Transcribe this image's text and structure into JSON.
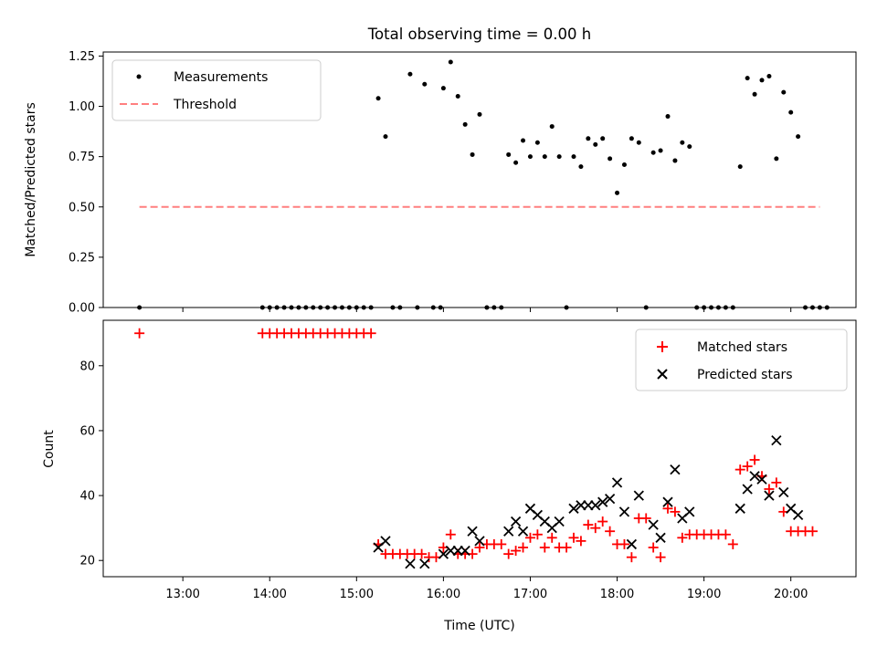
{
  "figure": {
    "title": "Total observing time = 0.00 h",
    "xlabel": "Time (UTC)"
  },
  "chart_data": [
    {
      "type": "scatter",
      "ylabel": "Matched/Predicted stars",
      "xlim": [
        "12:05",
        "20:45"
      ],
      "ylim": [
        0,
        1.27
      ],
      "yticks": [
        "0.00",
        "0.25",
        "0.50",
        "0.75",
        "1.00",
        "1.25"
      ],
      "xticks": [
        "13:00",
        "14:00",
        "15:00",
        "16:00",
        "17:00",
        "18:00",
        "19:00",
        "20:00"
      ],
      "legend": {
        "position": "top-left"
      },
      "series": [
        {
          "name": "Measurements",
          "color": "#000000",
          "marker": "dot",
          "points": [
            [
              "12:30",
              0.0
            ],
            [
              "13:55",
              0.0
            ],
            [
              "14:00",
              0.0
            ],
            [
              "14:05",
              0.0
            ],
            [
              "14:10",
              0.0
            ],
            [
              "14:15",
              0.0
            ],
            [
              "14:20",
              0.0
            ],
            [
              "14:25",
              0.0
            ],
            [
              "14:30",
              0.0
            ],
            [
              "14:35",
              0.0
            ],
            [
              "14:40",
              0.0
            ],
            [
              "14:45",
              0.0
            ],
            [
              "14:50",
              0.0
            ],
            [
              "14:55",
              0.0
            ],
            [
              "15:00",
              0.0
            ],
            [
              "15:05",
              0.0
            ],
            [
              "15:10",
              0.0
            ],
            [
              "15:15",
              1.04
            ],
            [
              "15:20",
              0.85
            ],
            [
              "15:25",
              0.0
            ],
            [
              "15:30",
              0.0
            ],
            [
              "15:37",
              1.16
            ],
            [
              "15:42",
              0.0
            ],
            [
              "15:47",
              1.11
            ],
            [
              "15:53",
              0.0
            ],
            [
              "15:58",
              0.0
            ],
            [
              "16:00",
              1.09
            ],
            [
              "16:05",
              1.22
            ],
            [
              "16:10",
              1.05
            ],
            [
              "16:15",
              0.91
            ],
            [
              "16:20",
              0.76
            ],
            [
              "16:25",
              0.96
            ],
            [
              "16:30",
              0.0
            ],
            [
              "16:35",
              0.0
            ],
            [
              "16:40",
              0.0
            ],
            [
              "16:45",
              0.76
            ],
            [
              "16:50",
              0.72
            ],
            [
              "16:55",
              0.83
            ],
            [
              "17:00",
              0.75
            ],
            [
              "17:05",
              0.82
            ],
            [
              "17:10",
              0.75
            ],
            [
              "17:15",
              0.9
            ],
            [
              "17:20",
              0.75
            ],
            [
              "17:25",
              0.0
            ],
            [
              "17:30",
              0.75
            ],
            [
              "17:35",
              0.7
            ],
            [
              "17:40",
              0.84
            ],
            [
              "17:45",
              0.81
            ],
            [
              "17:50",
              0.84
            ],
            [
              "17:55",
              0.74
            ],
            [
              "18:00",
              0.57
            ],
            [
              "18:05",
              0.71
            ],
            [
              "18:10",
              0.84
            ],
            [
              "18:15",
              0.82
            ],
            [
              "18:20",
              0.0
            ],
            [
              "18:25",
              0.77
            ],
            [
              "18:30",
              0.78
            ],
            [
              "18:35",
              0.95
            ],
            [
              "18:40",
              0.73
            ],
            [
              "18:45",
              0.82
            ],
            [
              "18:50",
              0.8
            ],
            [
              "18:55",
              0.0
            ],
            [
              "19:00",
              0.0
            ],
            [
              "19:05",
              0.0
            ],
            [
              "19:10",
              0.0
            ],
            [
              "19:15",
              0.0
            ],
            [
              "19:20",
              0.0
            ],
            [
              "19:25",
              0.7
            ],
            [
              "19:30",
              1.14
            ],
            [
              "19:35",
              1.06
            ],
            [
              "19:40",
              1.13
            ],
            [
              "19:45",
              1.15
            ],
            [
              "19:50",
              0.74
            ],
            [
              "19:55",
              1.07
            ],
            [
              "20:00",
              0.97
            ],
            [
              "20:05",
              0.85
            ],
            [
              "20:10",
              0.0
            ],
            [
              "20:15",
              0.0
            ],
            [
              "20:20",
              0.0
            ],
            [
              "20:25",
              0.0
            ]
          ]
        },
        {
          "name": "Threshold",
          "color": "#ff7f7f",
          "style": "dashed",
          "points": [
            [
              "12:30",
              0.5
            ],
            [
              "20:20",
              0.5
            ]
          ]
        }
      ]
    },
    {
      "type": "scatter",
      "ylabel": "Count",
      "xlim": [
        "12:05",
        "20:45"
      ],
      "ylim": [
        15,
        94
      ],
      "yticks": [
        "20",
        "40",
        "60",
        "80"
      ],
      "xticks": [
        "13:00",
        "14:00",
        "15:00",
        "16:00",
        "17:00",
        "18:00",
        "19:00",
        "20:00"
      ],
      "legend": {
        "position": "top-right"
      },
      "series": [
        {
          "name": "Matched stars",
          "color": "#ff0000",
          "marker": "plus",
          "points": [
            [
              "12:30",
              90
            ],
            [
              "13:55",
              90
            ],
            [
              "14:00",
              90
            ],
            [
              "14:05",
              90
            ],
            [
              "14:10",
              90
            ],
            [
              "14:15",
              90
            ],
            [
              "14:20",
              90
            ],
            [
              "14:25",
              90
            ],
            [
              "14:30",
              90
            ],
            [
              "14:35",
              90
            ],
            [
              "14:40",
              90
            ],
            [
              "14:45",
              90
            ],
            [
              "14:50",
              90
            ],
            [
              "14:55",
              90
            ],
            [
              "15:00",
              90
            ],
            [
              "15:05",
              90
            ],
            [
              "15:10",
              90
            ],
            [
              "15:15",
              25
            ],
            [
              "15:20",
              22
            ],
            [
              "15:25",
              22
            ],
            [
              "15:30",
              22
            ],
            [
              "15:35",
              22
            ],
            [
              "15:40",
              22
            ],
            [
              "15:45",
              22
            ],
            [
              "15:50",
              21
            ],
            [
              "15:55",
              21
            ],
            [
              "16:00",
              24
            ],
            [
              "16:05",
              28
            ],
            [
              "16:10",
              22
            ],
            [
              "16:15",
              22
            ],
            [
              "16:20",
              22
            ],
            [
              "16:25",
              24
            ],
            [
              "16:30",
              25
            ],
            [
              "16:35",
              25
            ],
            [
              "16:40",
              25
            ],
            [
              "16:45",
              22
            ],
            [
              "16:50",
              23
            ],
            [
              "16:55",
              24
            ],
            [
              "17:00",
              27
            ],
            [
              "17:05",
              28
            ],
            [
              "17:10",
              24
            ],
            [
              "17:15",
              27
            ],
            [
              "17:20",
              24
            ],
            [
              "17:25",
              24
            ],
            [
              "17:30",
              27
            ],
            [
              "17:35",
              26
            ],
            [
              "17:40",
              31
            ],
            [
              "17:45",
              30
            ],
            [
              "17:50",
              32
            ],
            [
              "17:55",
              29
            ],
            [
              "18:00",
              25
            ],
            [
              "18:05",
              25
            ],
            [
              "18:10",
              21
            ],
            [
              "18:15",
              33
            ],
            [
              "18:20",
              33
            ],
            [
              "18:25",
              24
            ],
            [
              "18:30",
              21
            ],
            [
              "18:35",
              36
            ],
            [
              "18:40",
              35
            ],
            [
              "18:45",
              27
            ],
            [
              "18:50",
              28
            ],
            [
              "18:55",
              28
            ],
            [
              "19:00",
              28
            ],
            [
              "19:05",
              28
            ],
            [
              "19:10",
              28
            ],
            [
              "19:15",
              28
            ],
            [
              "19:20",
              25
            ],
            [
              "19:25",
              48
            ],
            [
              "19:30",
              49
            ],
            [
              "19:35",
              51
            ],
            [
              "19:40",
              46
            ],
            [
              "19:45",
              42
            ],
            [
              "19:50",
              44
            ],
            [
              "19:55",
              35
            ],
            [
              "20:00",
              29
            ],
            [
              "20:05",
              29
            ],
            [
              "20:10",
              29
            ],
            [
              "20:15",
              29
            ]
          ]
        },
        {
          "name": "Predicted stars",
          "color": "#000000",
          "marker": "cross",
          "points": [
            [
              "15:15",
              24
            ],
            [
              "15:20",
              26
            ],
            [
              "15:37",
              19
            ],
            [
              "15:47",
              19
            ],
            [
              "16:00",
              22
            ],
            [
              "16:05",
              23
            ],
            [
              "16:10",
              23
            ],
            [
              "16:15",
              23
            ],
            [
              "16:20",
              29
            ],
            [
              "16:25",
              26
            ],
            [
              "16:45",
              29
            ],
            [
              "16:50",
              32
            ],
            [
              "16:55",
              29
            ],
            [
              "17:00",
              36
            ],
            [
              "17:05",
              34
            ],
            [
              "17:10",
              32
            ],
            [
              "17:15",
              30
            ],
            [
              "17:20",
              32
            ],
            [
              "17:30",
              36
            ],
            [
              "17:35",
              37
            ],
            [
              "17:40",
              37
            ],
            [
              "17:45",
              37
            ],
            [
              "17:50",
              38
            ],
            [
              "17:55",
              39
            ],
            [
              "18:00",
              44
            ],
            [
              "18:05",
              35
            ],
            [
              "18:10",
              25
            ],
            [
              "18:15",
              40
            ],
            [
              "18:25",
              31
            ],
            [
              "18:30",
              27
            ],
            [
              "18:35",
              38
            ],
            [
              "18:40",
              48
            ],
            [
              "18:45",
              33
            ],
            [
              "18:50",
              35
            ],
            [
              "19:25",
              36
            ],
            [
              "19:30",
              42
            ],
            [
              "19:35",
              46
            ],
            [
              "19:40",
              45
            ],
            [
              "19:45",
              40
            ],
            [
              "19:50",
              57
            ],
            [
              "19:55",
              41
            ],
            [
              "20:00",
              36
            ],
            [
              "20:05",
              34
            ]
          ]
        }
      ]
    }
  ]
}
